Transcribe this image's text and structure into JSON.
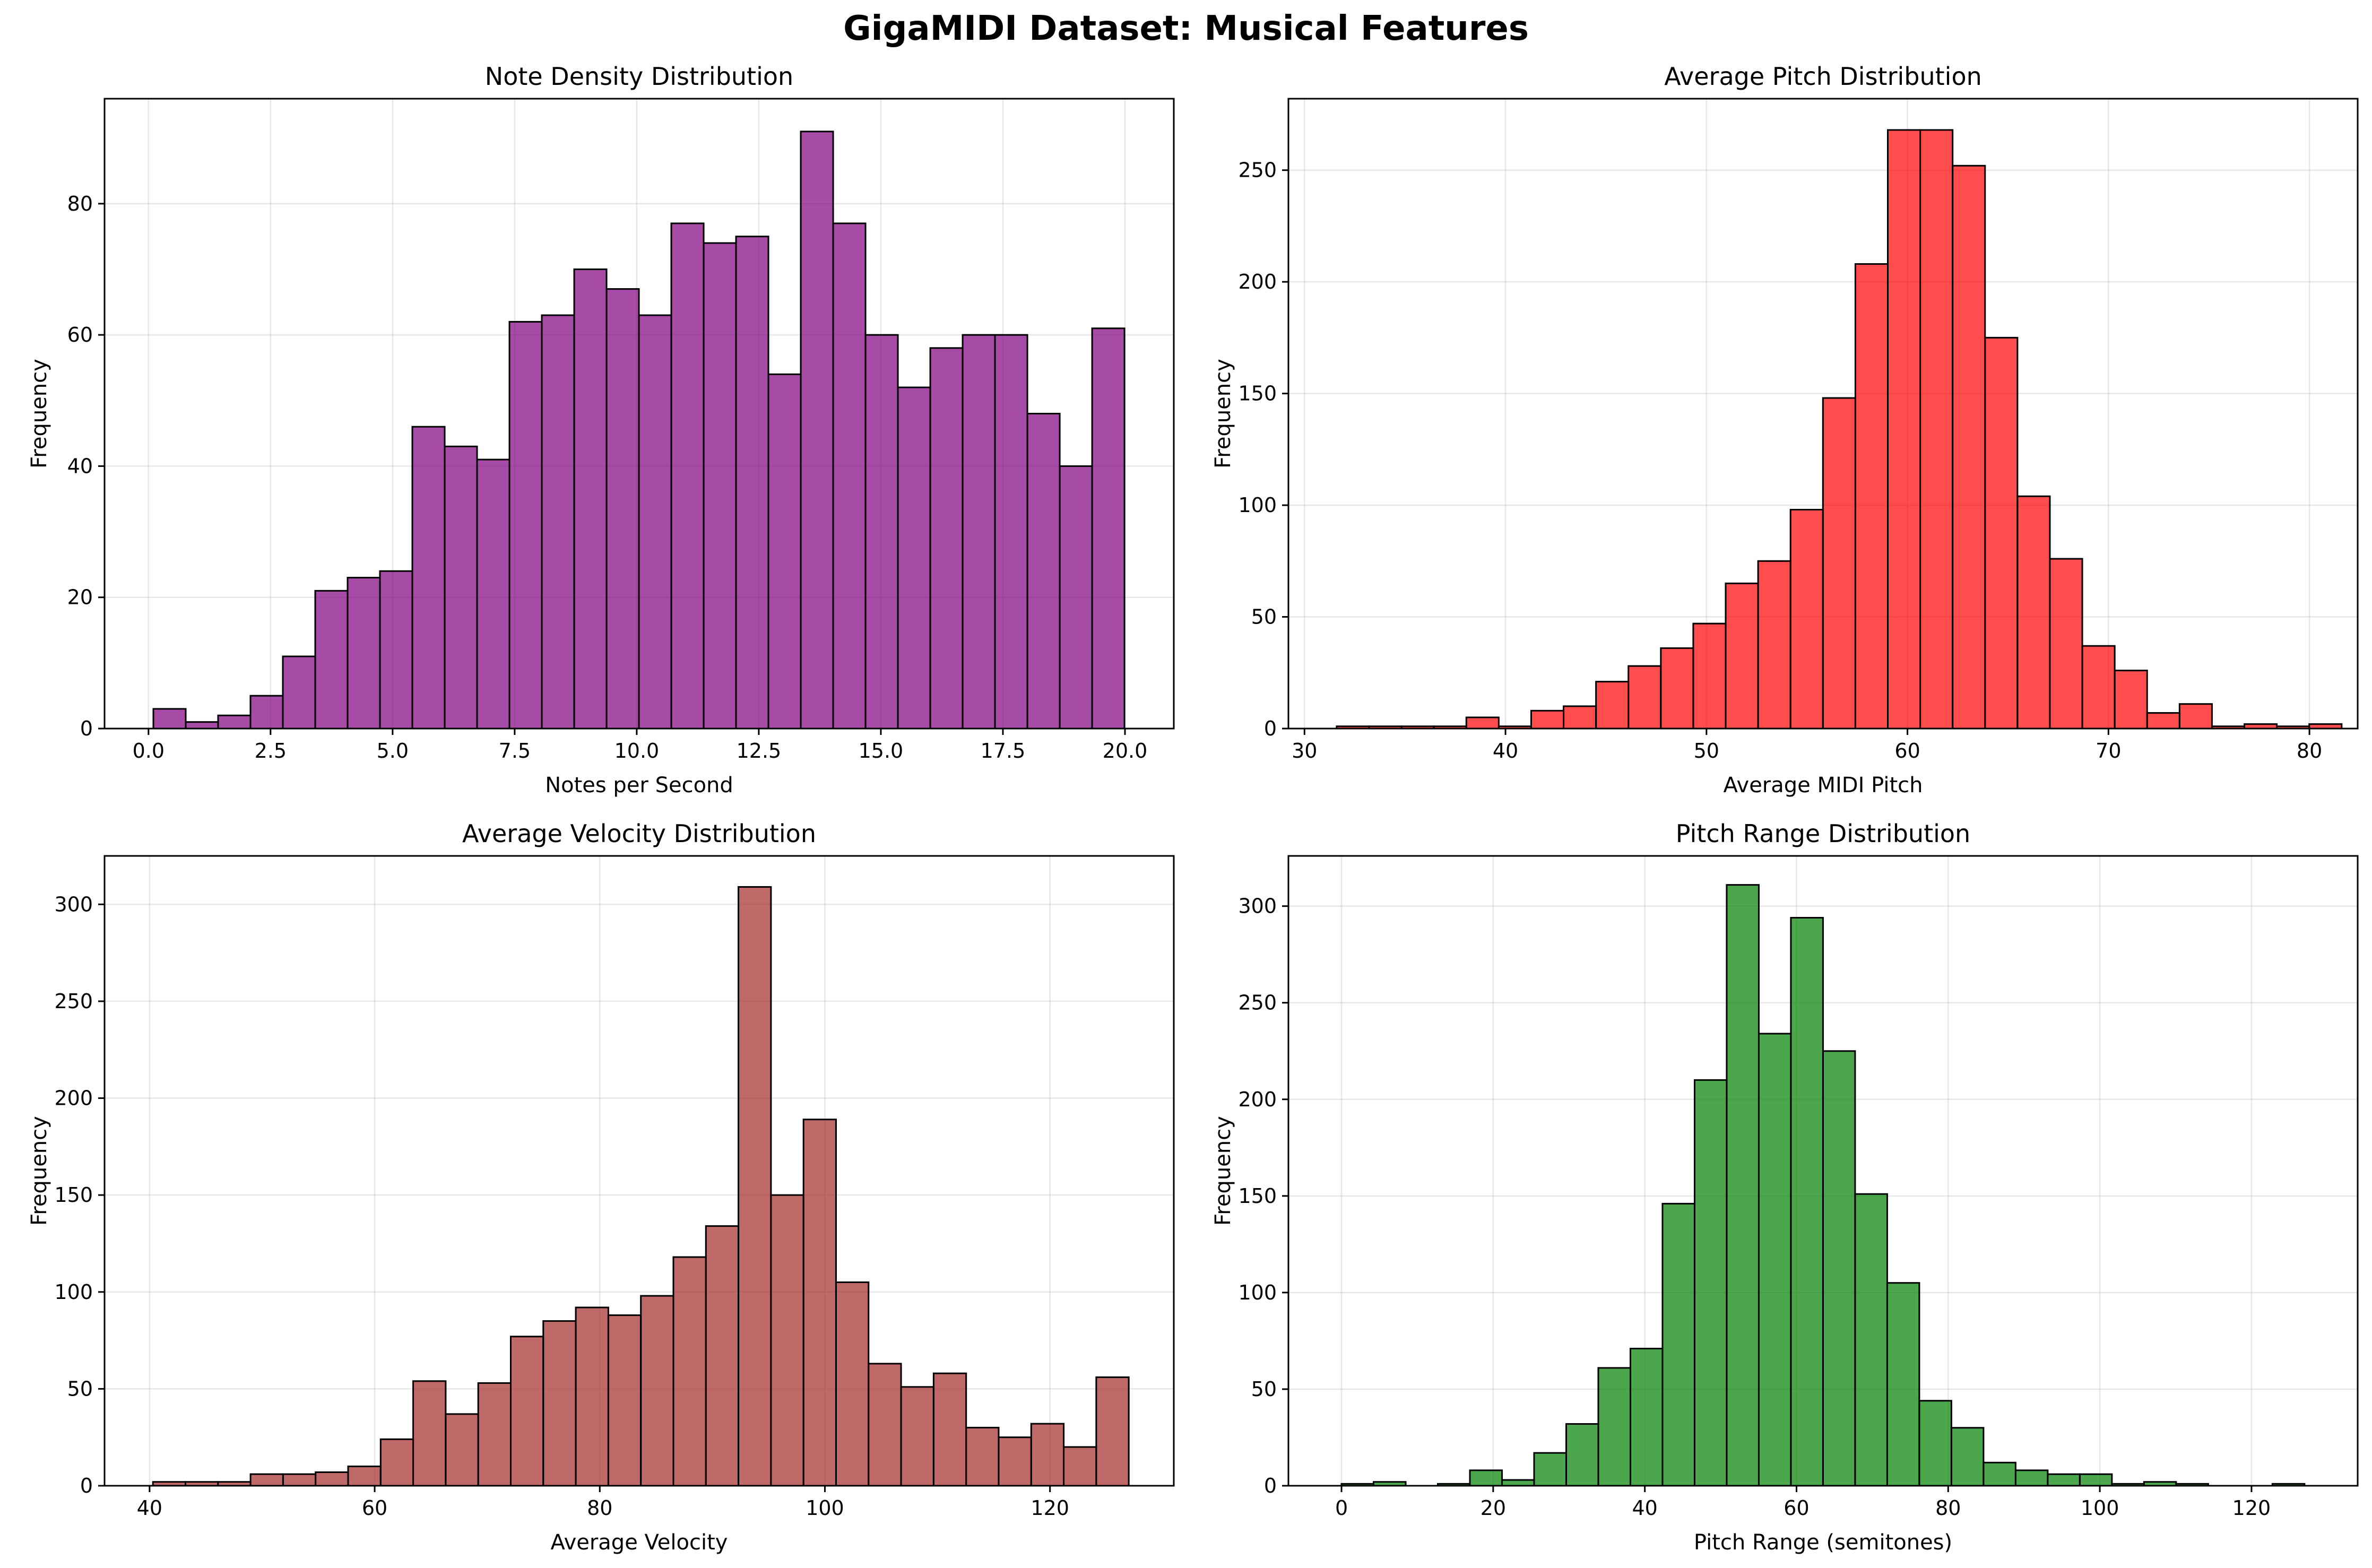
{
  "figure_title": "GigaMIDI Dataset: Musical Features",
  "chart_data": [
    {
      "type": "bar",
      "title": "Note Density Distribution",
      "xlabel": "Notes per Second",
      "ylabel": "Frequency",
      "color": "#800080",
      "bin_start": 0.1,
      "bin_width": 0.663,
      "values": [
        3,
        1,
        2,
        5,
        11,
        21,
        23,
        24,
        46,
        43,
        41,
        62,
        63,
        70,
        67,
        63,
        77,
        74,
        75,
        54,
        91,
        77,
        60,
        52,
        58,
        60,
        60,
        48,
        40,
        61
      ],
      "xlim": [
        -0.9,
        21.0
      ],
      "ylim": [
        0,
        96
      ],
      "xticks": [
        0.0,
        2.5,
        5.0,
        7.5,
        10.0,
        12.5,
        15.0,
        17.5,
        20.0
      ],
      "xtick_labels": [
        "0.0",
        "2.5",
        "5.0",
        "7.5",
        "10.0",
        "12.5",
        "15.0",
        "17.5",
        "20.0"
      ],
      "yticks": [
        0,
        20,
        40,
        60,
        80
      ],
      "ytick_labels": [
        "0",
        "20",
        "40",
        "60",
        "80"
      ],
      "grid": true
    },
    {
      "type": "bar",
      "title": "Average Pitch Distribution",
      "xlabel": "Average MIDI Pitch",
      "ylabel": "Frequency",
      "color": "#ff0000",
      "bin_start": 31.6,
      "bin_width": 1.613,
      "values": [
        1,
        1,
        1,
        1,
        5,
        1,
        8,
        10,
        21,
        28,
        36,
        47,
        65,
        75,
        98,
        148,
        208,
        268,
        268,
        252,
        175,
        104,
        76,
        37,
        26,
        7,
        11,
        1,
        2,
        1,
        2
      ],
      "xlim": [
        29.2,
        82.4
      ],
      "ylim": [
        0,
        282
      ],
      "xticks": [
        30,
        40,
        50,
        60,
        70,
        80
      ],
      "xtick_labels": [
        "30",
        "40",
        "50",
        "60",
        "70",
        "80"
      ],
      "yticks": [
        0,
        50,
        100,
        150,
        200,
        250
      ],
      "ytick_labels": [
        "0",
        "50",
        "100",
        "150",
        "200",
        "250"
      ],
      "grid": true
    },
    {
      "type": "bar",
      "title": "Average Velocity Distribution",
      "xlabel": "Average Velocity",
      "ylabel": "Frequency",
      "color": "#a52a2a",
      "bin_start": 40.3,
      "bin_width": 2.89,
      "values": [
        2,
        2,
        2,
        6,
        6,
        7,
        10,
        24,
        54,
        37,
        53,
        77,
        85,
        92,
        88,
        98,
        118,
        134,
        309,
        150,
        189,
        105,
        63,
        51,
        58,
        30,
        25,
        32,
        20,
        56
      ],
      "xlim": [
        36.0,
        131.0
      ],
      "ylim": [
        0,
        325
      ],
      "xticks": [
        40,
        60,
        80,
        100,
        120
      ],
      "xtick_labels": [
        "40",
        "60",
        "80",
        "100",
        "120"
      ],
      "yticks": [
        0,
        50,
        100,
        150,
        200,
        250,
        300
      ],
      "ytick_labels": [
        "0",
        "50",
        "100",
        "150",
        "200",
        "250",
        "300"
      ],
      "grid": true
    },
    {
      "type": "bar",
      "title": "Pitch Range Distribution",
      "xlabel": "Pitch Range (semitones)",
      "ylabel": "Frequency",
      "color": "#008000",
      "bin_start": 0,
      "bin_width": 4.233,
      "values": [
        1,
        2,
        0,
        1,
        8,
        3,
        17,
        32,
        61,
        71,
        146,
        210,
        311,
        234,
        294,
        225,
        151,
        105,
        44,
        30,
        12,
        8,
        6,
        6,
        1,
        2,
        1,
        0,
        0,
        1
      ],
      "xlim": [
        -7.0,
        134.0
      ],
      "ylim": [
        0,
        326
      ],
      "xticks": [
        0,
        20,
        40,
        60,
        80,
        100,
        120
      ],
      "xtick_labels": [
        "0",
        "20",
        "40",
        "60",
        "80",
        "100",
        "120"
      ],
      "yticks": [
        0,
        50,
        100,
        150,
        200,
        250,
        300
      ],
      "ytick_labels": [
        "0",
        "50",
        "100",
        "150",
        "200",
        "250",
        "300"
      ],
      "grid": true
    }
  ]
}
